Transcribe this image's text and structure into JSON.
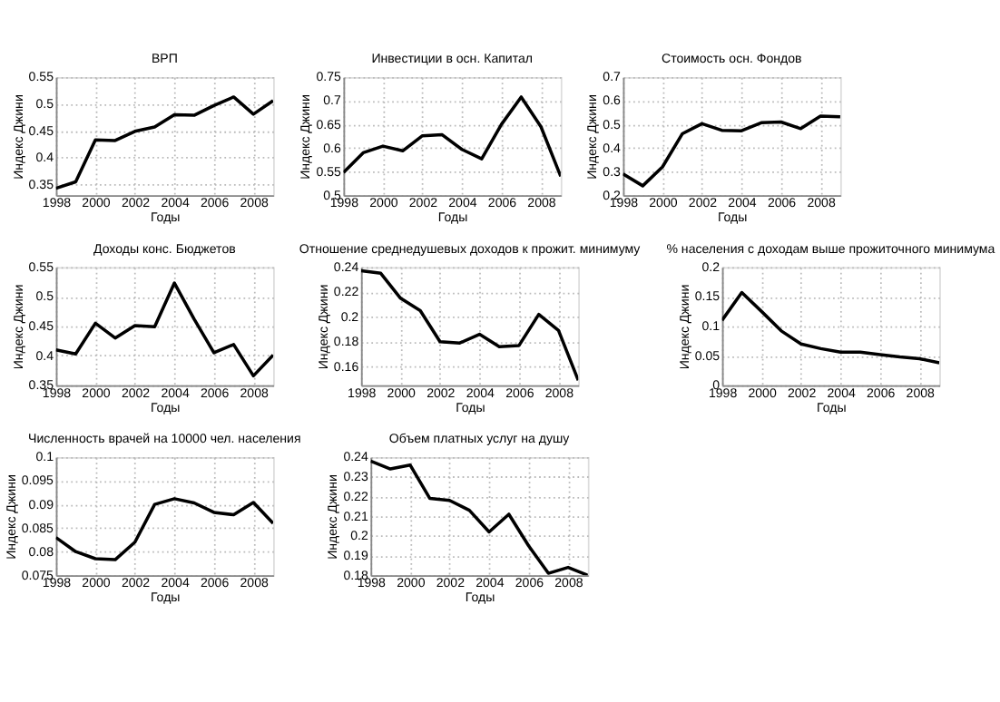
{
  "chart_data": [
    {
      "type": "line",
      "title": "ВРП",
      "xlabel": "Годы",
      "ylabel": "Индекс Джини",
      "grid": true,
      "xlim": [
        1998,
        2009
      ],
      "xticks": [
        1998,
        2000,
        2002,
        2004,
        2006,
        2008
      ],
      "ylim": [
        0.33,
        0.55
      ],
      "yticks": [
        0.35,
        0.4,
        0.45,
        0.5,
        0.55
      ],
      "x": [
        1998,
        1999,
        2000,
        2001,
        2002,
        2003,
        2004,
        2005,
        2006,
        2007,
        2008,
        2009
      ],
      "series": [
        {
          "color": "#000000",
          "values": [
            0.343,
            0.355,
            0.433,
            0.432,
            0.449,
            0.457,
            0.48,
            0.479,
            0.497,
            0.513,
            0.481,
            0.506
          ]
        }
      ]
    },
    {
      "type": "line",
      "title": "Инвестиции в осн. Капитал",
      "xlabel": "Годы",
      "ylabel": "Индекс Джини",
      "grid": true,
      "xlim": [
        1998,
        2009
      ],
      "xticks": [
        1998,
        2000,
        2002,
        2004,
        2006,
        2008
      ],
      "ylim": [
        0.5,
        0.75
      ],
      "yticks": [
        0.5,
        0.55,
        0.6,
        0.65,
        0.7,
        0.75
      ],
      "x": [
        1998,
        1999,
        2000,
        2001,
        2002,
        2003,
        2004,
        2005,
        2006,
        2007,
        2008,
        2009
      ],
      "series": [
        {
          "color": "#000000",
          "values": [
            0.548,
            0.59,
            0.604,
            0.594,
            0.626,
            0.628,
            0.597,
            0.577,
            0.65,
            0.708,
            0.645,
            0.54
          ]
        }
      ]
    },
    {
      "type": "line",
      "title": "Стоимость осн. Фондов",
      "xlabel": "Годы",
      "ylabel": "Индекс Джини",
      "grid": true,
      "xlim": [
        1998,
        2009
      ],
      "xticks": [
        1998,
        2000,
        2002,
        2004,
        2006,
        2008
      ],
      "ylim": [
        0.2,
        0.7
      ],
      "yticks": [
        0.2,
        0.3,
        0.4,
        0.5,
        0.6,
        0.7
      ],
      "x": [
        1998,
        1999,
        2000,
        2001,
        2002,
        2003,
        2004,
        2005,
        2006,
        2007,
        2008,
        2009
      ],
      "series": [
        {
          "color": "#000000",
          "values": [
            0.29,
            0.24,
            0.32,
            0.46,
            0.503,
            0.475,
            0.473,
            0.507,
            0.51,
            0.482,
            0.535,
            0.532
          ]
        }
      ]
    },
    {
      "type": "line",
      "title": "Доходы конс. Бюджетов",
      "xlabel": "Годы",
      "ylabel": "Индекс Джини",
      "grid": true,
      "xlim": [
        1998,
        2009
      ],
      "xticks": [
        1998,
        2000,
        2002,
        2004,
        2006,
        2008
      ],
      "ylim": [
        0.35,
        0.55
      ],
      "yticks": [
        0.35,
        0.4,
        0.45,
        0.5,
        0.55
      ],
      "x": [
        1998,
        1999,
        2000,
        2001,
        2002,
        2003,
        2004,
        2005,
        2006,
        2007,
        2008,
        2009
      ],
      "series": [
        {
          "color": "#000000",
          "values": [
            0.41,
            0.403,
            0.455,
            0.43,
            0.451,
            0.449,
            0.523,
            0.462,
            0.405,
            0.419,
            0.366,
            0.401
          ]
        }
      ]
    },
    {
      "type": "line",
      "title": "Отношение среднедушевых доходов к прожит. минимуму",
      "xlabel": "Годы",
      "ylabel": "Индекс Джини",
      "grid": true,
      "xlim": [
        1998,
        2009
      ],
      "xticks": [
        1998,
        2000,
        2002,
        2004,
        2006,
        2008
      ],
      "ylim": [
        0.145,
        0.24
      ],
      "yticks": [
        0.16,
        0.18,
        0.2,
        0.22,
        0.24
      ],
      "x": [
        1998,
        1999,
        2000,
        2001,
        2002,
        2003,
        2004,
        2005,
        2006,
        2007,
        2008,
        2009
      ],
      "series": [
        {
          "color": "#000000",
          "values": [
            0.237,
            0.235,
            0.215,
            0.205,
            0.18,
            0.179,
            0.186,
            0.176,
            0.177,
            0.202,
            0.189,
            0.149
          ]
        }
      ]
    },
    {
      "type": "line",
      "title": "% населения с доходам выше прожиточного минимума",
      "xlabel": "Годы",
      "ylabel": "Индекс Джини",
      "grid": true,
      "xlim": [
        1998,
        2009
      ],
      "xticks": [
        1998,
        2000,
        2002,
        2004,
        2006,
        2008
      ],
      "ylim": [
        0,
        0.2
      ],
      "yticks": [
        0,
        0.05,
        0.1,
        0.15,
        0.2
      ],
      "x": [
        1998,
        1999,
        2000,
        2001,
        2002,
        2003,
        2004,
        2005,
        2006,
        2007,
        2008,
        2009
      ],
      "series": [
        {
          "color": "#000000",
          "values": [
            0.11,
            0.157,
            0.125,
            0.092,
            0.07,
            0.062,
            0.056,
            0.056,
            0.052,
            0.048,
            0.045,
            0.038
          ]
        }
      ]
    },
    {
      "type": "line",
      "title": "Численность врачей на 10000 чел. населения",
      "xlabel": "Годы",
      "ylabel": "Индекс Джини",
      "grid": true,
      "xlim": [
        1998,
        2009
      ],
      "xticks": [
        1998,
        2000,
        2002,
        2004,
        2006,
        2008
      ],
      "ylim": [
        0.075,
        0.1
      ],
      "yticks": [
        0.075,
        0.08,
        0.085,
        0.09,
        0.095,
        0.1
      ],
      "x": [
        1998,
        1999,
        2000,
        2001,
        2002,
        2003,
        2004,
        2005,
        2006,
        2007,
        2008,
        2009
      ],
      "series": [
        {
          "color": "#000000",
          "values": [
            0.083,
            0.08,
            0.0785,
            0.0783,
            0.082,
            0.09,
            0.0912,
            0.0903,
            0.0883,
            0.0878,
            0.0904,
            0.086
          ]
        }
      ]
    },
    {
      "type": "line",
      "title": "Объем платных услуг на душу",
      "xlabel": "Годы",
      "ylabel": "Индекс Джини",
      "grid": true,
      "xlim": [
        1998,
        2009
      ],
      "xticks": [
        1998,
        2000,
        2002,
        2004,
        2006,
        2008
      ],
      "ylim": [
        0.18,
        0.24
      ],
      "yticks": [
        0.18,
        0.19,
        0.2,
        0.21,
        0.22,
        0.23,
        0.24
      ],
      "x": [
        1998,
        1999,
        2000,
        2001,
        2002,
        2003,
        2004,
        2005,
        2006,
        2007,
        2008,
        2009
      ],
      "series": [
        {
          "color": "#000000",
          "values": [
            0.238,
            0.234,
            0.236,
            0.219,
            0.218,
            0.213,
            0.202,
            0.211,
            0.195,
            0.181,
            0.184,
            0.18
          ]
        }
      ]
    }
  ]
}
